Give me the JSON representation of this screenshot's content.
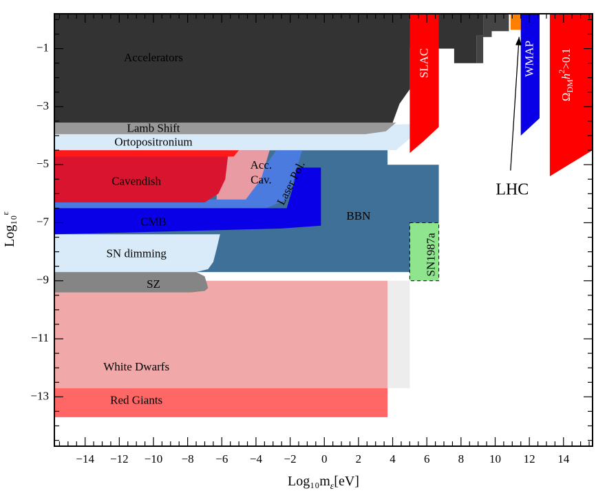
{
  "chart_data": {
    "type": "area",
    "title": "",
    "xlabel": "Log₁₀m",
    "xlabel_sub": "ε",
    "xlabel_unit": "[eV]",
    "ylabel": "Log₁₀",
    "ylabel_sup": "ε",
    "xlim": [
      -15.8,
      15.7
    ],
    "ylim": [
      -14.7,
      0.2
    ],
    "x_ticks": [
      -14,
      -12,
      -10,
      -8,
      -6,
      -4,
      -2,
      0,
      2,
      4,
      6,
      8,
      10,
      12,
      14
    ],
    "x_tick_labels": [
      "−14",
      "−12",
      "−10",
      "−8",
      "−6",
      "−4",
      "−2",
      "0",
      "2",
      "4",
      "6",
      "8",
      "10",
      "12",
      "14"
    ],
    "y_ticks": [
      -1,
      -3,
      -5,
      -7,
      -9,
      -11,
      -13
    ],
    "y_tick_labels": [
      "−1",
      "−3",
      "−5",
      "−7",
      "−9",
      "−11",
      "−13"
    ],
    "grid": false,
    "regions": [
      {
        "name": "White Dwarfs",
        "label": "White Dwarfs",
        "color": "#F0A8A8",
        "polygon": [
          [
            -15.8,
            -9.0
          ],
          [
            3.7,
            -9.0
          ],
          [
            3.7,
            -12.7
          ],
          [
            -15.8,
            -12.7
          ]
        ],
        "label_at": [
          -11.0,
          -12.0
        ]
      },
      {
        "name": "light-grey-band",
        "label": "",
        "color": "#EDEDED",
        "polygon": [
          [
            3.7,
            -9.0
          ],
          [
            5.0,
            -9.0
          ],
          [
            5.0,
            -12.7
          ],
          [
            3.7,
            -12.7
          ]
        ]
      },
      {
        "name": "Red Giants",
        "label": "Red Giants",
        "color": "#FF6666",
        "polygon": [
          [
            -15.8,
            -12.7
          ],
          [
            3.7,
            -12.7
          ],
          [
            3.7,
            -13.7
          ],
          [
            -15.8,
            -13.7
          ]
        ],
        "label_at": [
          -11.0,
          -13.15
        ]
      },
      {
        "name": "BBN",
        "label": "BBN",
        "color": "#3F7198",
        "polygon": [
          [
            -15.8,
            -4.5
          ],
          [
            3.7,
            -4.5
          ],
          [
            3.7,
            -5.0
          ],
          [
            5.0,
            -5.0
          ],
          [
            6.7,
            -5.0
          ],
          [
            6.7,
            -8.7
          ],
          [
            -15.8,
            -8.7
          ]
        ],
        "label_at": [
          2.0,
          -6.8
        ]
      },
      {
        "name": "SN1987a",
        "label": "SN1987a",
        "color": "#8EE58E",
        "polygon": [
          [
            5.0,
            -7.0
          ],
          [
            6.7,
            -7.0
          ],
          [
            6.7,
            -9.0
          ],
          [
            5.0,
            -9.0
          ]
        ],
        "label_at": [
          6.3,
          -8.1
        ],
        "rotate": -90,
        "dashed": true
      },
      {
        "name": "SN dimming",
        "label": "SN dimming",
        "color": "#D9EBF8",
        "polygon": [
          [
            -15.8,
            -7.4
          ],
          [
            -6.1,
            -7.4
          ],
          [
            -6.3,
            -7.9
          ],
          [
            -6.5,
            -8.35
          ],
          [
            -6.8,
            -8.6
          ],
          [
            -7.5,
            -8.7
          ],
          [
            -15.8,
            -8.7
          ]
        ],
        "label_at": [
          -11.0,
          -8.1
        ]
      },
      {
        "name": "SZ",
        "label": "SZ",
        "color": "#858585",
        "polygon": [
          [
            -15.8,
            -8.7
          ],
          [
            -7.5,
            -8.7
          ],
          [
            -7.0,
            -8.85
          ],
          [
            -6.8,
            -9.25
          ],
          [
            -7.0,
            -9.35
          ],
          [
            -7.8,
            -9.4
          ],
          [
            -15.8,
            -9.4
          ]
        ],
        "label_at": [
          -10.0,
          -9.15
        ]
      },
      {
        "name": "Laser Pol.",
        "label": "Laser Pol.",
        "color": "#4C7BE0",
        "polygon": [
          [
            -15.8,
            -6.2
          ],
          [
            -4.8,
            -6.2
          ],
          [
            -2.8,
            -4.5
          ],
          [
            -1.3,
            -4.5
          ],
          [
            -1.8,
            -5.5
          ],
          [
            -2.2,
            -6.2
          ],
          [
            -15.8,
            -6.2
          ]
        ],
        "label_at": [
          -1.9,
          -5.65
        ],
        "rotate": -63
      },
      {
        "name": "laser-pol-band",
        "label": "",
        "color": "#4C7BE0",
        "polygon": [
          [
            -2.8,
            -4.5
          ],
          [
            -1.3,
            -4.5
          ],
          [
            -1.8,
            -5.5
          ],
          [
            -2.2,
            -6.2
          ],
          [
            -3.4,
            -6.5
          ],
          [
            -15.8,
            -6.5
          ],
          [
            -15.8,
            -6.2
          ],
          [
            -4.8,
            -6.2
          ]
        ]
      },
      {
        "name": "CMB",
        "label": "CMB",
        "color": "#0A00E8",
        "polygon": [
          [
            -15.8,
            -6.5
          ],
          [
            -2.2,
            -6.5
          ],
          [
            -1.8,
            -5.7
          ],
          [
            -1.6,
            -5.1
          ],
          [
            -0.2,
            -5.1
          ],
          [
            -0.2,
            -7.1
          ],
          [
            -2.5,
            -7.2
          ],
          [
            -15.8,
            -7.4
          ]
        ],
        "label_at": [
          -10.0,
          -7.0
        ]
      },
      {
        "name": "Acc. Cav.",
        "label": "Acc.",
        "label2": "Cav.",
        "color": "#E89BA3",
        "polygon": [
          [
            -6.3,
            -4.5
          ],
          [
            -3.2,
            -4.5
          ],
          [
            -3.7,
            -5.5
          ],
          [
            -4.6,
            -6.2
          ],
          [
            -6.3,
            -6.2
          ]
        ],
        "label_at": [
          -3.7,
          -5.05
        ],
        "label2_at": [
          -3.7,
          -5.55
        ]
      },
      {
        "name": "Cavendish",
        "label": "Cavendish",
        "color": "#D9142E",
        "polygon": [
          [
            -15.8,
            -4.5
          ],
          [
            -5.6,
            -4.5
          ],
          [
            -5.8,
            -5.5
          ],
          [
            -6.2,
            -6.0
          ],
          [
            -7.0,
            -6.3
          ],
          [
            -15.8,
            -6.3
          ]
        ],
        "label_at": [
          -11.0,
          -5.6
        ]
      },
      {
        "name": "cavendish-top",
        "label": "",
        "color": "#FF1A1A",
        "polygon": [
          [
            -15.8,
            -4.5
          ],
          [
            -5.0,
            -4.5
          ],
          [
            -5.3,
            -4.72
          ],
          [
            -15.8,
            -4.72
          ]
        ]
      },
      {
        "name": "Ortopositronium",
        "label": "Ortopositronium",
        "color": "#D9EBF8",
        "polygon": [
          [
            -15.8,
            -3.95
          ],
          [
            5.0,
            -3.6
          ],
          [
            5.0,
            -4.1
          ],
          [
            4.2,
            -4.5
          ],
          [
            -15.8,
            -4.5
          ]
        ],
        "label_at": [
          -10.0,
          -4.25
        ]
      },
      {
        "name": "Lamb Shift",
        "label": "Lamb Shift",
        "color": "#999999",
        "polygon": [
          [
            -15.8,
            -3.55
          ],
          [
            4.2,
            -3.55
          ],
          [
            3.6,
            -3.85
          ],
          [
            2.4,
            -3.95
          ],
          [
            -15.8,
            -3.95
          ]
        ],
        "label_at": [
          -10.0,
          -3.78
        ],
        "small": true
      },
      {
        "name": "Accelerators",
        "label": "Accelerators",
        "color": "#333333",
        "polygon": [
          [
            -15.8,
            0.2
          ],
          [
            9.3,
            0.2
          ],
          [
            9.3,
            -0.55
          ],
          [
            8.9,
            -0.55
          ],
          [
            8.9,
            -1.5
          ],
          [
            7.6,
            -1.5
          ],
          [
            7.6,
            -1.0
          ],
          [
            5.0,
            -1.0
          ],
          [
            5.0,
            -2.4
          ],
          [
            4.4,
            -2.9
          ],
          [
            4.0,
            -3.55
          ],
          [
            -15.8,
            -3.55
          ]
        ],
        "label_at": [
          -10.0,
          -1.35
        ]
      },
      {
        "name": "accelerator-steps",
        "label": "",
        "color": "#444444",
        "polygon": [
          [
            6.7,
            0.2
          ],
          [
            10.8,
            0.2
          ],
          [
            10.8,
            -0.4
          ],
          [
            9.8,
            -0.4
          ],
          [
            9.8,
            -0.6
          ],
          [
            9.3,
            -0.6
          ],
          [
            9.3,
            -1.5
          ],
          [
            8.9,
            -1.5
          ],
          [
            8.9,
            -0.55
          ],
          [
            9.3,
            -0.55
          ],
          [
            9.3,
            0.2
          ]
        ]
      },
      {
        "name": "SLAC",
        "label": "SLAC",
        "color": "#FF0000",
        "polygon": [
          [
            5.0,
            0.2
          ],
          [
            6.7,
            0.2
          ],
          [
            6.7,
            -3.7
          ],
          [
            5.8,
            -4.2
          ],
          [
            5.0,
            -4.6
          ]
        ],
        "label_at": [
          5.9,
          -1.5
        ],
        "rotate": -90,
        "label_color": "#ffffff"
      },
      {
        "name": "WMAP",
        "label": "WMAP",
        "color": "#0A00E8",
        "polygon": [
          [
            11.5,
            0.2
          ],
          [
            12.6,
            0.2
          ],
          [
            12.6,
            -3.4
          ],
          [
            11.5,
            -4.0
          ]
        ],
        "label_at": [
          12.05,
          -1.35
        ],
        "rotate": -90,
        "label_color": "#ffffff",
        "small": true
      },
      {
        "name": "Omega DM",
        "label": "Ω",
        "label_sub": "DM",
        "label_h": "h",
        "label_sup": "2",
        "label_tail": ">0.1",
        "color": "#FF0000",
        "polygon": [
          [
            13.2,
            0.2
          ],
          [
            15.7,
            0.2
          ],
          [
            15.7,
            -4.5
          ],
          [
            13.2,
            -5.4
          ]
        ],
        "label_at": [
          14.2,
          -1.9
        ],
        "rotate": -90,
        "label_color": "#ffffff"
      },
      {
        "name": "LHC",
        "label": "LHC",
        "color": "#FF8000",
        "polygon": [
          [
            10.9,
            0.2
          ],
          [
            11.5,
            0.2
          ],
          [
            11.5,
            -0.35
          ],
          [
            10.9,
            -0.35
          ]
        ],
        "callout_text_at": [
          11.0,
          -5.9
        ],
        "arrow_from": [
          10.9,
          -5.2
        ],
        "arrow_to": [
          11.4,
          -0.6
        ]
      }
    ]
  }
}
